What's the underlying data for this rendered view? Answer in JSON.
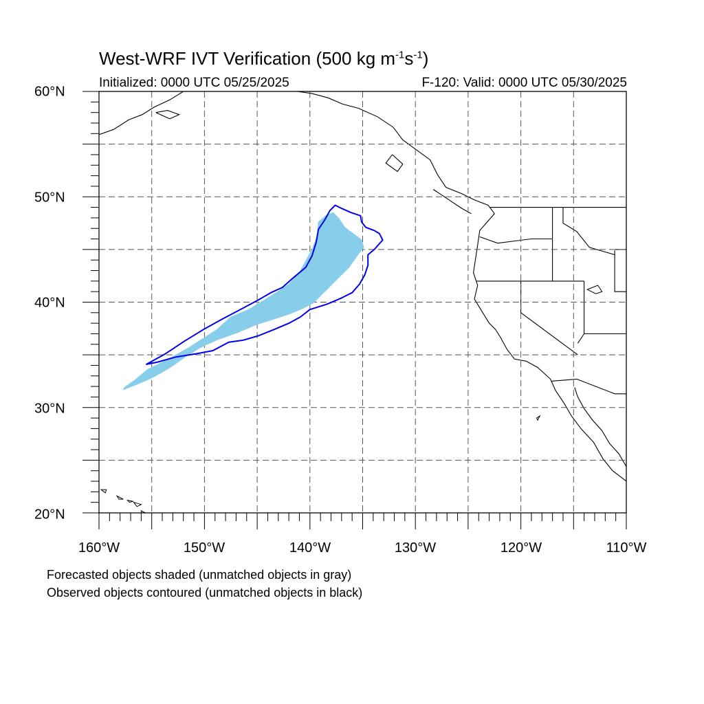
{
  "title": {
    "main": "West-WRF IVT Verification (500 kg m",
    "sup1": "-1",
    "mid": "s",
    "sup2": "-1",
    "end": ")"
  },
  "subtitle_left": "Initialized: 0000 UTC 05/25/2025",
  "subtitle_right": "F-120: Valid: 0000 UTC 05/30/2025",
  "lat_labels": [
    "60°N",
    "50°N",
    "40°N",
    "30°N",
    "20°N"
  ],
  "lon_labels": [
    "160°W",
    "150°W",
    "140°W",
    "130°W",
    "120°W",
    "110°W"
  ],
  "caption_line1": "Forecasted objects shaded (unmatched objects in gray)",
  "caption_line2": "Observed objects contoured (unmatched objects in black)",
  "colors": {
    "forecast_fill": "#87ceeb",
    "observed_contour": "#0000ee",
    "coastline": "#000000",
    "gridline": "#555555"
  },
  "map_extent": {
    "lon": [
      -160,
      -110
    ],
    "lat": [
      20,
      60
    ]
  },
  "grid_spacing_deg": 5,
  "forecast_object": {
    "type": "shaded",
    "outline_lonlat": [
      [
        -157.6,
        31.9
      ],
      [
        -156.6,
        32.6
      ],
      [
        -155.4,
        33.6
      ],
      [
        -153.8,
        34.4
      ],
      [
        -151.6,
        35.6
      ],
      [
        -150.2,
        36.5
      ],
      [
        -148.8,
        37.4
      ],
      [
        -147.5,
        38.6
      ],
      [
        -145.8,
        39.3
      ],
      [
        -144.5,
        40.1
      ],
      [
        -143.2,
        40.9
      ],
      [
        -142.0,
        41.7
      ],
      [
        -141.0,
        42.8
      ],
      [
        -140.4,
        43.9
      ],
      [
        -139.8,
        45.0
      ],
      [
        -139.3,
        46.3
      ],
      [
        -139.2,
        47.6
      ],
      [
        -138.5,
        48.2
      ],
      [
        -137.8,
        48.5
      ],
      [
        -137.3,
        48.0
      ],
      [
        -136.7,
        47.1
      ],
      [
        -135.9,
        46.5
      ],
      [
        -135.1,
        45.9
      ],
      [
        -134.9,
        45.2
      ],
      [
        -135.6,
        44.3
      ],
      [
        -136.3,
        43.3
      ],
      [
        -137.0,
        42.6
      ],
      [
        -137.8,
        41.8
      ],
      [
        -138.4,
        41.2
      ],
      [
        -139.0,
        40.6
      ],
      [
        -139.7,
        39.9
      ],
      [
        -140.7,
        39.4
      ],
      [
        -141.9,
        38.9
      ],
      [
        -143.4,
        38.4
      ],
      [
        -145.0,
        37.9
      ],
      [
        -146.9,
        37.1
      ],
      [
        -148.6,
        36.5
      ],
      [
        -150.2,
        35.8
      ],
      [
        -151.7,
        34.9
      ],
      [
        -153.4,
        33.7
      ],
      [
        -155.0,
        32.8
      ],
      [
        -156.4,
        32.2
      ],
      [
        -157.7,
        31.7
      ]
    ]
  },
  "observed_object": {
    "type": "contour",
    "outline_lonlat": [
      [
        -155.5,
        34.1
      ],
      [
        -153.7,
        35.1
      ],
      [
        -151.9,
        36.3
      ],
      [
        -150.1,
        37.4
      ],
      [
        -148.3,
        38.4
      ],
      [
        -146.6,
        39.3
      ],
      [
        -144.9,
        40.2
      ],
      [
        -143.7,
        40.9
      ],
      [
        -142.6,
        41.4
      ],
      [
        -141.6,
        42.3
      ],
      [
        -140.4,
        43.3
      ],
      [
        -139.8,
        44.4
      ],
      [
        -139.4,
        45.7
      ],
      [
        -139.2,
        46.9
      ],
      [
        -138.6,
        47.8
      ],
      [
        -138.1,
        48.7
      ],
      [
        -137.6,
        49.2
      ],
      [
        -137.0,
        48.9
      ],
      [
        -136.1,
        48.5
      ],
      [
        -135.2,
        48.2
      ],
      [
        -135.1,
        47.6
      ],
      [
        -134.7,
        47.1
      ],
      [
        -133.9,
        46.8
      ],
      [
        -133.4,
        46.5
      ],
      [
        -133.1,
        45.9
      ],
      [
        -133.9,
        45.0
      ],
      [
        -134.5,
        44.5
      ],
      [
        -134.5,
        43.5
      ],
      [
        -134.8,
        42.6
      ],
      [
        -135.3,
        41.7
      ],
      [
        -136.0,
        40.9
      ],
      [
        -137.0,
        40.4
      ],
      [
        -138.4,
        39.8
      ],
      [
        -140.0,
        39.3
      ],
      [
        -140.9,
        38.6
      ],
      [
        -142.0,
        38.0
      ],
      [
        -143.4,
        37.4
      ],
      [
        -144.9,
        36.8
      ],
      [
        -146.3,
        36.4
      ],
      [
        -147.7,
        36.2
      ],
      [
        -149.2,
        35.4
      ],
      [
        -150.8,
        35.1
      ],
      [
        -152.7,
        34.8
      ],
      [
        -154.5,
        34.3
      ],
      [
        -155.5,
        34.1
      ]
    ]
  }
}
